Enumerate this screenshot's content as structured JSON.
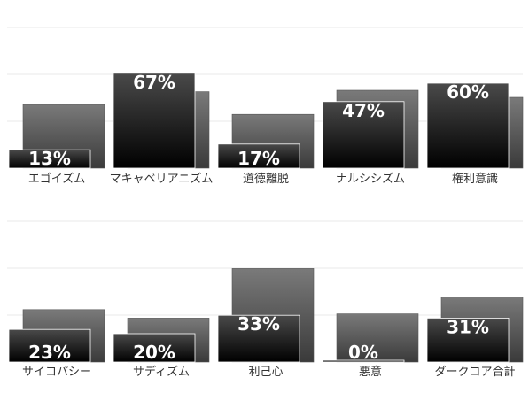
{
  "chart_data": [
    {
      "type": "bar",
      "grid": true,
      "ylim": [
        0,
        100
      ],
      "categories": [
        "エゴイズム",
        "マキャベリアニズム",
        "道徳離脱",
        "ナルシシズム",
        "権利意識"
      ],
      "series": [
        {
          "values": [
            13,
            67,
            17,
            47,
            60
          ]
        },
        {
          "values": [
            45,
            54,
            38,
            55,
            50
          ]
        }
      ],
      "labels": [
        "13%",
        "67%",
        "17%",
        "47%",
        "60%"
      ]
    },
    {
      "type": "bar",
      "grid": true,
      "ylim": [
        0,
        100
      ],
      "categories": [
        "サイコパシー",
        "サディズム",
        "利己心",
        "悪意",
        "ダークコア合計"
      ],
      "series": [
        {
          "values": [
            23,
            20,
            33,
            0,
            31
          ]
        },
        {
          "values": [
            37,
            31,
            66,
            34,
            46
          ]
        }
      ],
      "labels": [
        "23%",
        "20%",
        "33%",
        "0%",
        "31%"
      ]
    }
  ],
  "colors": {
    "front_top": "#4a4a4a",
    "front_bottom": "#000000",
    "back_top": "#7a7a7a",
    "back_bottom": "#3a3a3a",
    "grid": "#e8e8e8"
  }
}
